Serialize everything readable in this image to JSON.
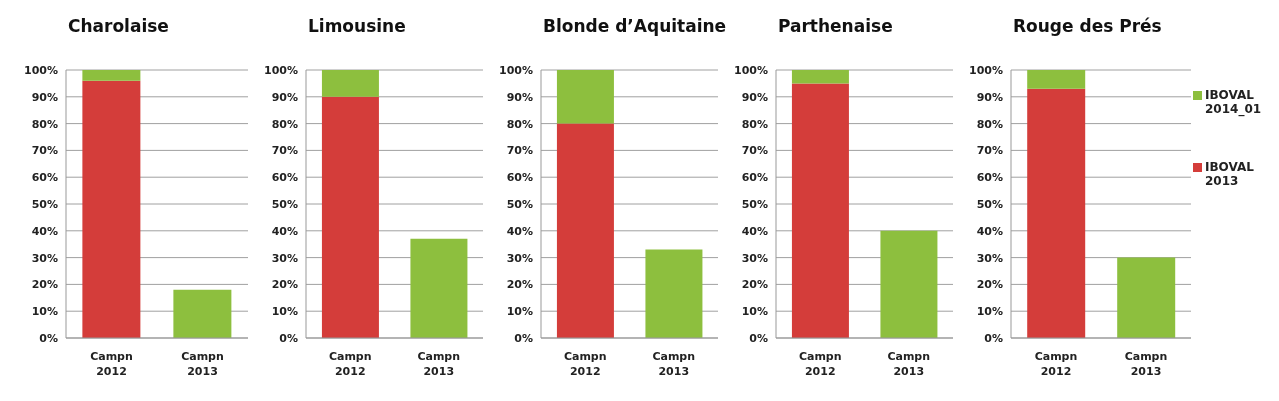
{
  "chart_data": [
    {
      "type": "bar",
      "title": "Charolaise",
      "categories": [
        "Campn 2012",
        "Campn 2013"
      ],
      "stacked": true,
      "series": [
        {
          "color": "#d43d3a",
          "values": [
            96,
            0
          ]
        },
        {
          "color": "#8dbf3e",
          "values": [
            4,
            18
          ]
        }
      ],
      "ylim": [
        0,
        100
      ],
      "yticks": [
        {
          "value": 0,
          "label": "0%"
        },
        {
          "value": 10,
          "label": "10%"
        },
        {
          "value": 20,
          "label": "20%"
        },
        {
          "value": 30,
          "label": "30%"
        },
        {
          "value": 40,
          "label": "40%"
        },
        {
          "value": 50,
          "label": "50%"
        },
        {
          "value": 60,
          "label": "60%"
        },
        {
          "value": 70,
          "label": "70%"
        },
        {
          "value": 80,
          "label": "80%"
        },
        {
          "value": 90,
          "label": "90%"
        },
        {
          "value": 100,
          "label": "100%"
        }
      ],
      "grid": "y"
    },
    {
      "type": "bar",
      "title": "Limousine",
      "categories": [
        "Campn 2012",
        "Campn 2013"
      ],
      "stacked": true,
      "series": [
        {
          "color": "#d43d3a",
          "values": [
            90,
            0
          ]
        },
        {
          "color": "#8dbf3e",
          "values": [
            10,
            37
          ]
        }
      ],
      "ylim": [
        0,
        100
      ],
      "yticks": [
        {
          "value": 0,
          "label": "0%"
        },
        {
          "value": 10,
          "label": "10%"
        },
        {
          "value": 20,
          "label": "20%"
        },
        {
          "value": 30,
          "label": "30%"
        },
        {
          "value": 40,
          "label": "40%"
        },
        {
          "value": 50,
          "label": "50%"
        },
        {
          "value": 60,
          "label": "60%"
        },
        {
          "value": 70,
          "label": "70%"
        },
        {
          "value": 80,
          "label": "80%"
        },
        {
          "value": 90,
          "label": "90%"
        },
        {
          "value": 100,
          "label": "100%"
        }
      ],
      "grid": "y"
    },
    {
      "type": "bar",
      "title": "Blonde d’Aquitaine",
      "categories": [
        "Campn 2012",
        "Campn 2013"
      ],
      "stacked": true,
      "series": [
        {
          "color": "#d43d3a",
          "values": [
            80,
            0
          ]
        },
        {
          "color": "#8dbf3e",
          "values": [
            20,
            33
          ]
        }
      ],
      "ylim": [
        0,
        100
      ],
      "yticks": [
        {
          "value": 0,
          "label": "0%"
        },
        {
          "value": 10,
          "label": "10%"
        },
        {
          "value": 20,
          "label": "20%"
        },
        {
          "value": 30,
          "label": "30%"
        },
        {
          "value": 40,
          "label": "40%"
        },
        {
          "value": 50,
          "label": "50%"
        },
        {
          "value": 60,
          "label": "60%"
        },
        {
          "value": 70,
          "label": "70%"
        },
        {
          "value": 80,
          "label": "80%"
        },
        {
          "value": 90,
          "label": "90%"
        },
        {
          "value": 100,
          "label": "100%"
        }
      ],
      "grid": "y"
    },
    {
      "type": "bar",
      "title": "Parthenaise",
      "categories": [
        "Campn 2012",
        "Campn 2013"
      ],
      "stacked": true,
      "series": [
        {
          "color": "#d43d3a",
          "values": [
            95,
            0
          ]
        },
        {
          "color": "#8dbf3e",
          "values": [
            5,
            40
          ]
        }
      ],
      "ylim": [
        0,
        100
      ],
      "yticks": [
        {
          "value": 0,
          "label": "0%"
        },
        {
          "value": 10,
          "label": "10%"
        },
        {
          "value": 20,
          "label": "20%"
        },
        {
          "value": 30,
          "label": "30%"
        },
        {
          "value": 40,
          "label": "40%"
        },
        {
          "value": 50,
          "label": "50%"
        },
        {
          "value": 60,
          "label": "60%"
        },
        {
          "value": 70,
          "label": "70%"
        },
        {
          "value": 80,
          "label": "80%"
        },
        {
          "value": 90,
          "label": "90%"
        },
        {
          "value": 100,
          "label": "100%"
        }
      ],
      "grid": "y"
    },
    {
      "type": "bar",
      "title": "Rouge des Prés",
      "categories": [
        "Campn 2012",
        "Campn 2013"
      ],
      "stacked": true,
      "legend": "right",
      "series": [
        {
          "name": "IBOVAL 2013",
          "color": "#d43d3a",
          "values": [
            93,
            0
          ]
        },
        {
          "name": "IBOVAL 2014_01",
          "color": "#8dbf3e",
          "values": [
            7,
            30
          ]
        }
      ],
      "ylim": [
        0,
        100
      ],
      "yticks": [
        {
          "value": 0,
          "label": "0%"
        },
        {
          "value": 10,
          "label": "10%"
        },
        {
          "value": 20,
          "label": "20%"
        },
        {
          "value": 30,
          "label": "30%"
        },
        {
          "value": 40,
          "label": "40%"
        },
        {
          "value": 50,
          "label": "50%"
        },
        {
          "value": 60,
          "label": "60%"
        },
        {
          "value": 70,
          "label": "70%"
        },
        {
          "value": 80,
          "label": "80%"
        },
        {
          "value": 90,
          "label": "90%"
        },
        {
          "value": 100,
          "label": "100%"
        }
      ],
      "grid": "y"
    }
  ]
}
